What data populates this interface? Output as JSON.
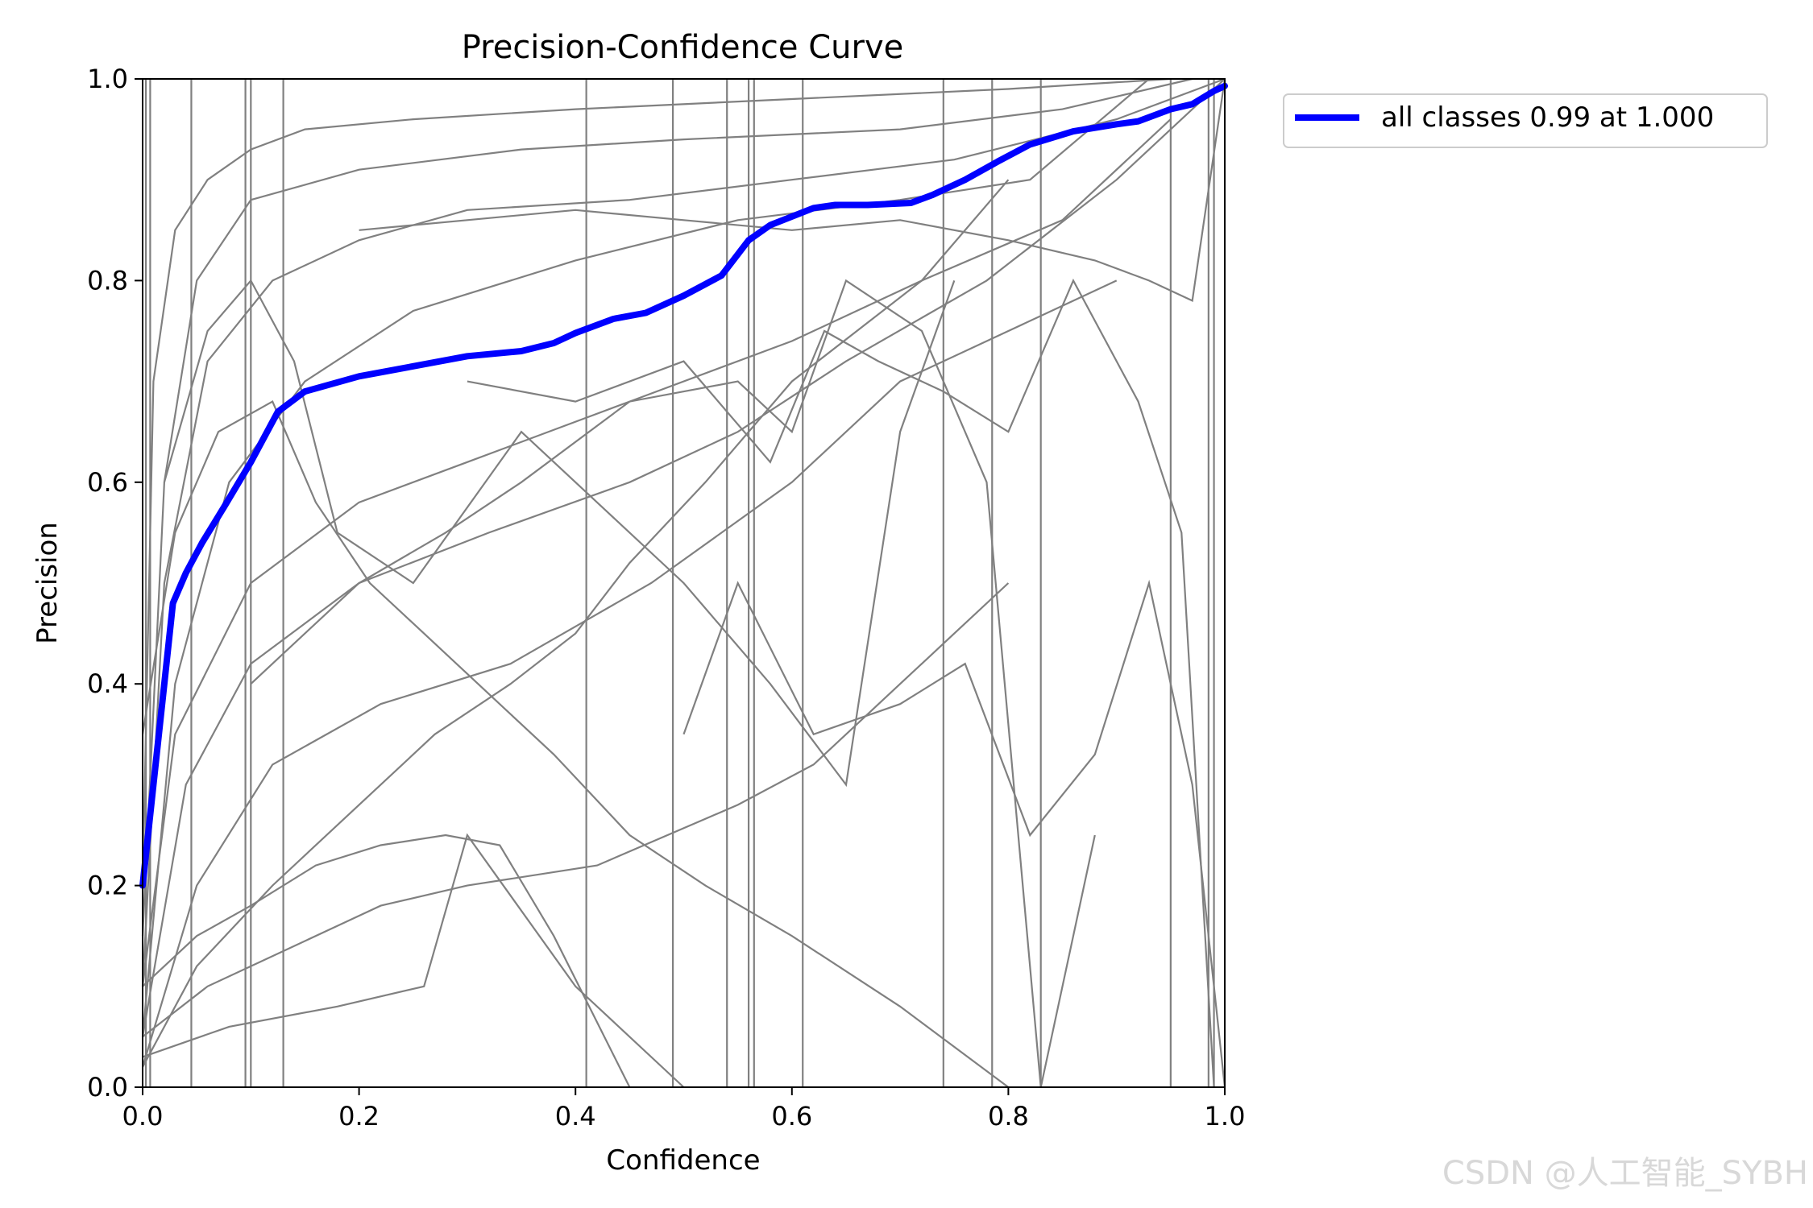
{
  "chart_data": {
    "type": "line",
    "title": "Precision-Confidence Curve",
    "xlabel": "Confidence",
    "ylabel": "Precision",
    "xlim": [
      0.0,
      1.0
    ],
    "ylim": [
      0.0,
      1.0
    ],
    "xticks": [
      "0.0",
      "0.2",
      "0.4",
      "0.6",
      "0.8",
      "1.0"
    ],
    "yticks": [
      "0.0",
      "0.2",
      "0.4",
      "0.6",
      "0.8",
      "1.0"
    ],
    "grid": false,
    "legend_position": "outside-top-right",
    "series_color_main": "#0000ff",
    "series_color_classes": "#808080",
    "main_series": {
      "name": "all classes 0.99 at 1.000",
      "x": [
        0.0,
        0.01,
        0.02,
        0.028,
        0.04,
        0.055,
        0.075,
        0.1,
        0.125,
        0.15,
        0.2,
        0.25,
        0.3,
        0.35,
        0.38,
        0.4,
        0.435,
        0.465,
        0.5,
        0.535,
        0.56,
        0.58,
        0.62,
        0.64,
        0.67,
        0.71,
        0.73,
        0.76,
        0.79,
        0.82,
        0.86,
        0.9,
        0.92,
        0.95,
        0.97,
        0.99,
        1.0
      ],
      "y": [
        0.2,
        0.3,
        0.4,
        0.48,
        0.51,
        0.54,
        0.575,
        0.62,
        0.67,
        0.69,
        0.705,
        0.715,
        0.725,
        0.73,
        0.738,
        0.748,
        0.762,
        0.768,
        0.785,
        0.805,
        0.84,
        0.855,
        0.872,
        0.875,
        0.875,
        0.877,
        0.885,
        0.9,
        0.918,
        0.935,
        0.948,
        0.955,
        0.958,
        0.97,
        0.975,
        0.988,
        0.993
      ]
    },
    "class_series": [
      {
        "x": [
          0.0,
          0.01,
          0.03,
          0.06,
          0.1,
          0.15,
          0.25,
          0.4,
          0.6,
          0.8,
          0.95,
          1.0
        ],
        "y": [
          0.2,
          0.7,
          0.85,
          0.9,
          0.93,
          0.95,
          0.96,
          0.97,
          0.98,
          0.99,
          1.0,
          1.0
        ]
      },
      {
        "x": [
          0.0,
          0.02,
          0.05,
          0.1,
          0.2,
          0.35,
          0.5,
          0.7,
          0.85,
          0.97
        ],
        "y": [
          0.15,
          0.6,
          0.8,
          0.88,
          0.91,
          0.93,
          0.94,
          0.95,
          0.97,
          1.0
        ]
      },
      {
        "x": [
          0.0,
          0.02,
          0.06,
          0.12,
          0.2,
          0.3,
          0.45,
          0.6,
          0.75,
          0.9,
          1.0
        ],
        "y": [
          0.1,
          0.5,
          0.72,
          0.8,
          0.84,
          0.87,
          0.88,
          0.9,
          0.92,
          0.96,
          1.0
        ]
      },
      {
        "x": [
          0.0,
          0.03,
          0.08,
          0.15,
          0.25,
          0.4,
          0.55,
          0.7,
          0.82,
          0.93
        ],
        "y": [
          0.05,
          0.4,
          0.6,
          0.7,
          0.77,
          0.82,
          0.86,
          0.88,
          0.9,
          1.0
        ]
      },
      {
        "x": [
          0.0,
          0.03,
          0.1,
          0.2,
          0.3,
          0.45,
          0.6,
          0.72,
          0.85,
          0.95
        ],
        "y": [
          0.1,
          0.35,
          0.5,
          0.58,
          0.62,
          0.68,
          0.74,
          0.8,
          0.86,
          0.96
        ]
      },
      {
        "x": [
          0.0,
          0.04,
          0.1,
          0.2,
          0.32,
          0.45,
          0.55,
          0.65,
          0.78,
          0.9,
          1.0
        ],
        "y": [
          0.05,
          0.3,
          0.42,
          0.5,
          0.55,
          0.6,
          0.65,
          0.72,
          0.8,
          0.9,
          1.0
        ]
      },
      {
        "x": [
          0.0,
          0.05,
          0.12,
          0.22,
          0.34,
          0.47,
          0.6,
          0.7,
          0.8,
          0.9
        ],
        "y": [
          0.02,
          0.2,
          0.32,
          0.38,
          0.42,
          0.5,
          0.6,
          0.7,
          0.75,
          0.8
        ]
      },
      {
        "x": [
          0.0,
          0.05,
          0.12,
          0.2,
          0.27,
          0.34,
          0.4,
          0.45,
          0.52,
          0.6,
          0.72,
          0.8
        ],
        "y": [
          0.02,
          0.12,
          0.2,
          0.28,
          0.35,
          0.4,
          0.45,
          0.52,
          0.6,
          0.7,
          0.8,
          0.9
        ]
      },
      {
        "x": [
          0.0,
          0.06,
          0.14,
          0.22,
          0.3,
          0.42,
          0.55,
          0.62,
          0.7,
          0.75,
          0.8
        ],
        "y": [
          0.05,
          0.1,
          0.14,
          0.18,
          0.2,
          0.22,
          0.28,
          0.32,
          0.4,
          0.45,
          0.5
        ]
      },
      {
        "x": [
          0.0,
          0.08,
          0.18,
          0.26,
          0.3,
          0.4,
          0.5
        ],
        "y": [
          0.03,
          0.06,
          0.08,
          0.1,
          0.25,
          0.1,
          0.0
        ]
      },
      {
        "x": [
          0.0,
          0.05,
          0.1,
          0.16,
          0.22,
          0.28,
          0.33,
          0.38,
          0.45
        ],
        "y": [
          0.1,
          0.15,
          0.18,
          0.22,
          0.24,
          0.25,
          0.24,
          0.15,
          0.0
        ]
      },
      {
        "x": [
          0.0,
          0.03,
          0.07,
          0.12,
          0.16,
          0.21,
          0.26,
          0.31,
          0.38,
          0.45,
          0.52,
          0.6,
          0.7,
          0.8
        ],
        "y": [
          0.35,
          0.55,
          0.65,
          0.68,
          0.58,
          0.5,
          0.45,
          0.4,
          0.33,
          0.25,
          0.2,
          0.15,
          0.08,
          0.0
        ]
      },
      {
        "x": [
          0.02,
          0.06,
          0.1,
          0.14,
          0.18,
          0.25,
          0.35,
          0.5,
          0.58,
          0.65,
          0.7,
          0.75
        ],
        "y": [
          0.6,
          0.75,
          0.8,
          0.72,
          0.55,
          0.5,
          0.65,
          0.5,
          0.4,
          0.3,
          0.65,
          0.8
        ]
      },
      {
        "x": [
          0.1,
          0.15,
          0.2,
          0.28,
          0.35,
          0.45,
          0.55,
          0.6,
          0.65,
          0.72,
          0.78,
          0.83,
          0.88
        ],
        "y": [
          0.4,
          0.45,
          0.5,
          0.55,
          0.6,
          0.68,
          0.7,
          0.65,
          0.8,
          0.75,
          0.6,
          0.0,
          0.25
        ]
      },
      {
        "x": [
          0.5,
          0.55,
          0.62,
          0.7,
          0.76,
          0.82,
          0.88,
          0.93,
          0.97,
          1.0
        ],
        "y": [
          0.35,
          0.5,
          0.35,
          0.38,
          0.42,
          0.25,
          0.33,
          0.5,
          0.3,
          0.0
        ]
      },
      {
        "x": [
          0.3,
          0.4,
          0.5,
          0.58,
          0.63,
          0.68,
          0.74,
          0.8,
          0.86,
          0.92,
          0.96,
          0.99
        ],
        "y": [
          0.7,
          0.68,
          0.72,
          0.62,
          0.75,
          0.72,
          0.69,
          0.65,
          0.8,
          0.68,
          0.55,
          0.0
        ]
      },
      {
        "x": [
          0.2,
          0.3,
          0.4,
          0.5,
          0.6,
          0.7,
          0.8,
          0.88,
          0.93,
          0.97,
          1.0
        ],
        "y": [
          0.85,
          0.86,
          0.87,
          0.86,
          0.85,
          0.86,
          0.84,
          0.82,
          0.8,
          0.78,
          1.0
        ]
      }
    ],
    "vertical_class_lines_x": [
      0.003,
      0.007,
      0.045,
      0.095,
      0.1,
      0.13,
      0.41,
      0.49,
      0.54,
      0.56,
      0.565,
      0.61,
      0.74,
      0.785,
      0.83,
      0.95,
      0.985,
      0.99
    ]
  },
  "watermark": "CSDN @人工智能_SYBH"
}
